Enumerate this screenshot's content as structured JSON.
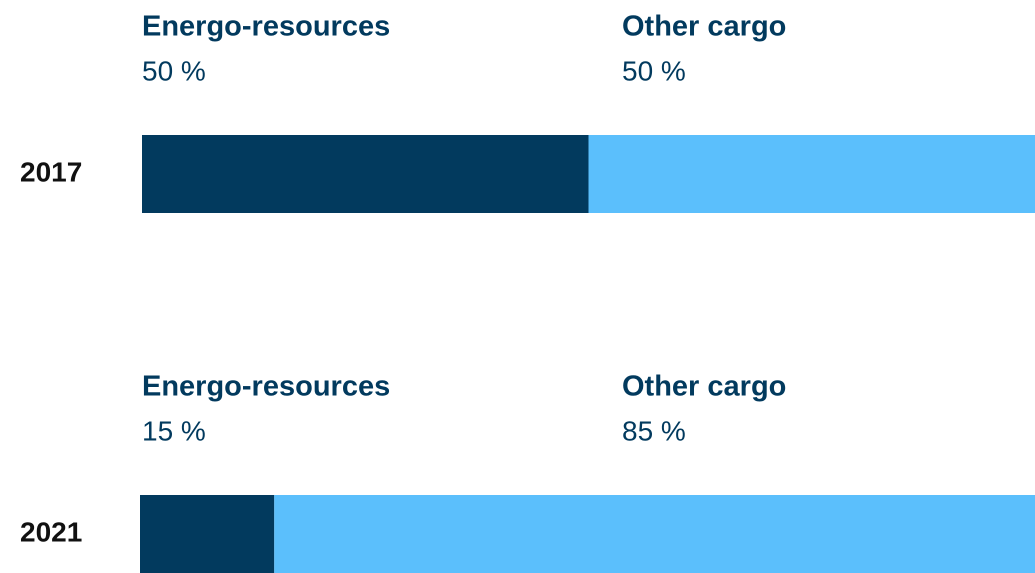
{
  "chart_data": [
    {
      "type": "bar",
      "orientation": "horizontal",
      "stacked": true,
      "categories": [
        "2017"
      ],
      "xlim": [
        0,
        100
      ],
      "series": [
        {
          "name": "Energo-resources",
          "color": "#023a5e",
          "values": [
            50
          ],
          "value_labels": [
            "50 %"
          ]
        },
        {
          "name": "Other cargo",
          "color": "#5bbffc",
          "values": [
            50
          ],
          "value_labels": [
            "50 %"
          ]
        }
      ]
    },
    {
      "type": "bar",
      "orientation": "horizontal",
      "stacked": true,
      "categories": [
        "2021"
      ],
      "xlim": [
        0,
        100
      ],
      "series": [
        {
          "name": "Energo-resources",
          "color": "#023a5e",
          "values": [
            15
          ],
          "value_labels": [
            "15 %"
          ]
        },
        {
          "name": "Other cargo",
          "color": "#5bbffc",
          "values": [
            85
          ],
          "value_labels": [
            "85 %"
          ]
        }
      ]
    }
  ]
}
